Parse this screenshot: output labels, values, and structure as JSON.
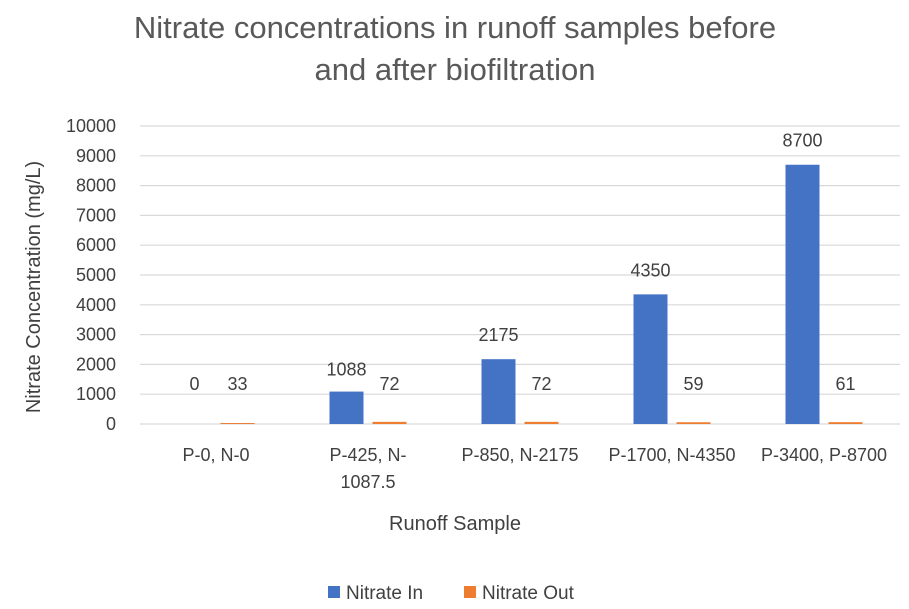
{
  "chart_data": {
    "type": "bar",
    "title": "Nitrate concentrations in runoff samples before and after biofiltration",
    "title_lines": [
      "Nitrate concentrations in runoff samples before",
      "and after biofiltration"
    ],
    "xlabel": "Runoff Sample",
    "ylabel": "Nitrate Concentration (mg/L)",
    "categories": [
      "P-0, N-0",
      "P-425, N-1087.5",
      "P-850, N-2175",
      "P-1700, N-4350",
      "P-3400, P-8700"
    ],
    "category_label_lines": [
      [
        "P-0, N-0"
      ],
      [
        "P-425, N-",
        "1087.5"
      ],
      [
        "P-850, N-2175"
      ],
      [
        "P-1700, N-4350"
      ],
      [
        "P-3400, P-8700"
      ]
    ],
    "series": [
      {
        "name": "Nitrate In",
        "color": "#4472C4",
        "values": [
          0,
          1088,
          2175,
          4350,
          8700
        ]
      },
      {
        "name": "Nitrate Out",
        "color": "#ED7D31",
        "values": [
          33,
          72,
          72,
          59,
          61
        ]
      }
    ],
    "ylim": [
      0,
      10000
    ],
    "yticks": [
      0,
      1000,
      2000,
      3000,
      4000,
      5000,
      6000,
      7000,
      8000,
      9000,
      10000
    ],
    "grid": true,
    "legend_position": "bottom",
    "data_labels": true,
    "gridline_color": "#D9D9D9"
  }
}
